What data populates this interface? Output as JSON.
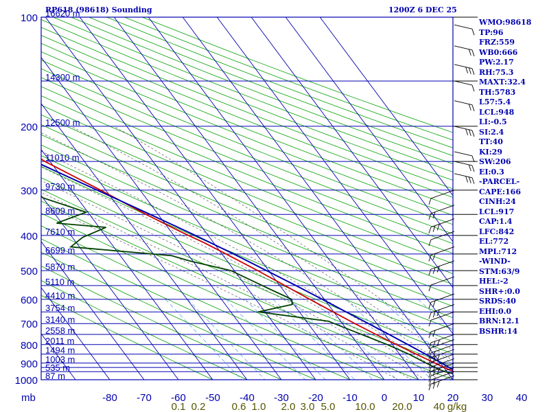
{
  "header": {
    "station": "RP618 (98618) Sounding",
    "time": "1200Z  6 DEC 25"
  },
  "chart_data": {
    "type": "skew-t",
    "title": "RP618 (98618) Sounding",
    "pressure_axis_label": "mb",
    "pressure_ticks": [
      100,
      200,
      300,
      400,
      500,
      600,
      700,
      800,
      900,
      1000
    ],
    "pressure_lines": [
      100,
      150,
      200,
      250,
      300,
      350,
      400,
      450,
      500,
      550,
      600,
      650,
      700,
      750,
      800,
      850,
      900,
      925,
      950,
      1000
    ],
    "height_labels": [
      {
        "p": 100,
        "label": "16620 m"
      },
      {
        "p": 150,
        "label": "14300 m"
      },
      {
        "p": 200,
        "label": "12500 m"
      },
      {
        "p": 250,
        "label": "11010 m"
      },
      {
        "p": 300,
        "label": "9730 m"
      },
      {
        "p": 350,
        "label": "8609 m"
      },
      {
        "p": 400,
        "label": "7610 m"
      },
      {
        "p": 450,
        "label": "6699 m"
      },
      {
        "p": 500,
        "label": "5870 m"
      },
      {
        "p": 550,
        "label": "5110 m"
      },
      {
        "p": 600,
        "label": "4410 m"
      },
      {
        "p": 650,
        "label": "3754 m"
      },
      {
        "p": 700,
        "label": "3140 m"
      },
      {
        "p": 750,
        "label": "2558 m"
      },
      {
        "p": 800,
        "label": "2011 m"
      },
      {
        "p": 850,
        "label": "1494 m"
      },
      {
        "p": 900,
        "label": "1003 m"
      },
      {
        "p": 950,
        "label": "535 m"
      },
      {
        "p": 1000,
        "label": "87 m"
      }
    ],
    "temperature_ticks": [
      -80,
      -70,
      -60,
      -50,
      -40,
      -30,
      -20,
      -10,
      0,
      10,
      20,
      30,
      40
    ],
    "mixing_ratio_labels": [
      "0.1",
      "0.2",
      "0.6",
      "1.0",
      "2.0",
      "3.0",
      "5.0",
      "10.0",
      "20.0",
      "40",
      "g/kg"
    ],
    "series": [
      {
        "name": "Temperature",
        "color": "#cc0000",
        "points": [
          [
            1005,
            26.8
          ],
          [
            1000,
            26
          ],
          [
            975,
            24.2
          ],
          [
            960,
            22.5
          ],
          [
            950,
            22
          ],
          [
            925,
            20
          ],
          [
            900,
            18.4
          ],
          [
            870,
            16.3
          ],
          [
            850,
            14.8
          ],
          [
            800,
            11.2
          ],
          [
            750,
            7.4
          ],
          [
            700,
            3.6
          ],
          [
            650,
            -0.2
          ],
          [
            600,
            -4.2
          ],
          [
            550,
            -8.5
          ],
          [
            500,
            -13.2
          ],
          [
            450,
            -18.8
          ],
          [
            420,
            -22.6
          ],
          [
            400,
            -25.7
          ],
          [
            390,
            -27.3
          ],
          [
            350,
            -33.5
          ],
          [
            300,
            -41.5
          ],
          [
            250,
            -51.5
          ],
          [
            200,
            -59.5
          ],
          [
            150,
            -70
          ],
          [
            120,
            -77.5
          ],
          [
            100,
            -83
          ]
        ]
      },
      {
        "name": "Dewpoint",
        "color": "#004000",
        "points": [
          [
            1005,
            24.7
          ],
          [
            1000,
            23.5
          ],
          [
            960,
            21
          ],
          [
            950,
            19.3
          ],
          [
            930,
            17.8
          ],
          [
            900,
            15.8
          ],
          [
            850,
            12.7
          ],
          [
            800,
            8.5
          ],
          [
            750,
            3.2
          ],
          [
            700,
            -2.4
          ],
          [
            690,
            -3.5
          ],
          [
            650,
            -22
          ],
          [
            620,
            -10.5
          ],
          [
            600,
            -9.5
          ],
          [
            560,
            -14
          ],
          [
            500,
            -21
          ],
          [
            470,
            -31
          ],
          [
            455,
            -35
          ],
          [
            430,
            -62.5
          ],
          [
            405,
            -57
          ],
          [
            380,
            -48
          ],
          [
            370,
            -61.5
          ],
          [
            345,
            -50.5
          ],
          [
            315,
            -60
          ],
          [
            300,
            -61
          ],
          [
            285,
            -70
          ],
          [
            270,
            -70.5
          ],
          [
            253,
            -70
          ],
          [
            234,
            -75
          ],
          [
            212,
            -85
          ],
          [
            196,
            -87
          ],
          [
            183,
            -88
          ],
          [
            168,
            -88
          ],
          [
            150,
            -92
          ],
          [
            130,
            -98
          ],
          [
            115,
            -101
          ]
        ]
      },
      {
        "name": "Parcel",
        "color": "#0000b0",
        "points": [
          [
            1005,
            25.6
          ],
          [
            1000,
            25.1
          ],
          [
            950,
            22.8
          ],
          [
            900,
            20.3
          ],
          [
            850,
            17.6
          ],
          [
            800,
            14.5
          ],
          [
            750,
            11.2
          ],
          [
            700,
            7.6
          ],
          [
            650,
            3.6
          ],
          [
            600,
            -0.6
          ],
          [
            550,
            -5.3
          ],
          [
            500,
            -10.6
          ],
          [
            450,
            -16.6
          ],
          [
            400,
            -23.7
          ],
          [
            350,
            -32.3
          ],
          [
            300,
            -42.5
          ],
          [
            250,
            -54.5
          ],
          [
            200,
            -67.5
          ],
          [
            150,
            -83.5
          ],
          [
            118,
            -95
          ]
        ]
      }
    ],
    "wind_barbs_levels_mb": [
      105,
      120,
      135,
      150,
      170,
      200,
      235,
      250,
      270,
      300,
      330,
      360,
      390,
      430,
      470,
      520,
      580,
      620,
      650,
      700,
      750,
      775,
      800,
      825,
      850,
      875,
      900,
      925,
      950,
      975
    ]
  },
  "stats": [
    "WMO:98618",
    "TP:96",
    "FRZ:559",
    "WB0:666",
    "PW:2.17",
    "RH:75.3",
    "MAXT:32.4",
    "TH:5783",
    "L57:5.4",
    "LCL:948",
    "LI:-0.5",
    "SI:2.4",
    "TT:40",
    "KI:29",
    "SW:206",
    "EI:0.3",
    "-PARCEL-",
    "CAPE:166",
    "CINH:24",
    "LCL:917",
    "CAP:1.4",
    "LFC:842",
    "EL:772",
    "MPL:712",
    "-WIND-",
    "STM:63/9",
    "HEL:-2",
    "SHR+:0.0",
    "SRDS:40",
    "EHI:0.0",
    "BRN:12.1",
    "BSHR:14"
  ]
}
